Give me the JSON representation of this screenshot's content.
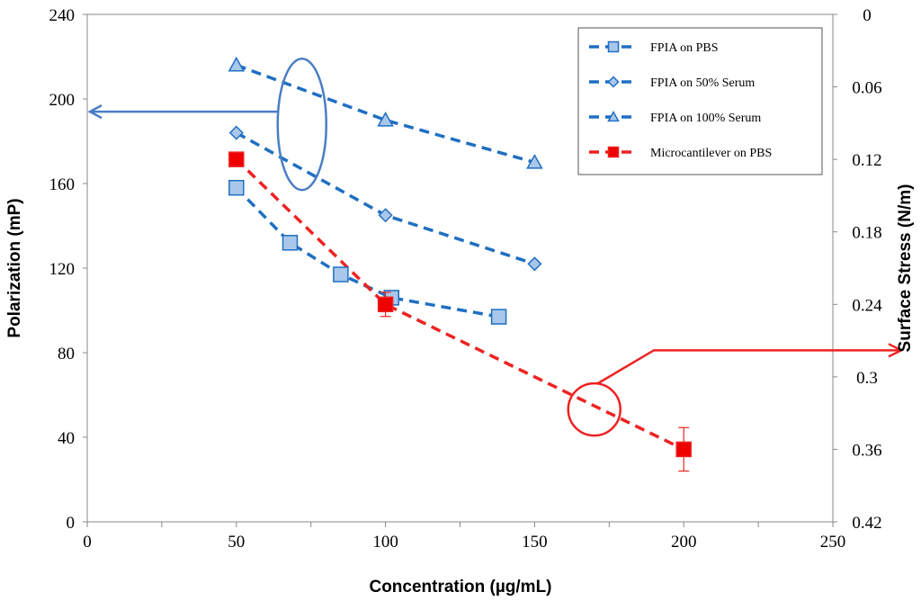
{
  "chart_data": {
    "type": "scatter",
    "title": "",
    "xlabel": "Concentration (µg/mL)",
    "ylabel": "Polarization (mP)",
    "y2label": "Surface Stress (N/m)",
    "xlim": [
      0,
      250
    ],
    "ylim": [
      0,
      240
    ],
    "y2lim": [
      0,
      0.42
    ],
    "y2_inverted": true,
    "x_ticks": [
      "0",
      "50",
      "100",
      "150",
      "200",
      "250"
    ],
    "y_ticks": [
      "0",
      "40",
      "80",
      "120",
      "160",
      "200",
      "240"
    ],
    "y2_ticks": [
      "0",
      "0.06",
      "0.12",
      "0.18",
      "0.24",
      "0.3",
      "0.36",
      "0.42"
    ],
    "grid": false,
    "legend_position": "top-right",
    "series": [
      {
        "name": "FPIA on PBS",
        "axis": "left",
        "marker": "square",
        "color": "#1f6fc2",
        "fill": "#a9c7ea",
        "x": [
          50,
          68,
          85,
          102,
          138
        ],
        "y": [
          158,
          132,
          117,
          106,
          97
        ]
      },
      {
        "name": "FPIA on 50% Serum",
        "axis": "left",
        "marker": "diamond",
        "color": "#1f6fc2",
        "fill": "#a9c7ea",
        "x": [
          50,
          100,
          150
        ],
        "y": [
          184,
          145,
          122
        ]
      },
      {
        "name": "FPIA on 100% Serum",
        "axis": "left",
        "marker": "triangle",
        "color": "#1f6fc2",
        "fill": "#a9c7ea",
        "x": [
          50,
          100,
          150
        ],
        "y": [
          216,
          190,
          170
        ]
      },
      {
        "name": "Microcantilever on PBS",
        "axis": "right",
        "marker": "square",
        "color": "#ee2222",
        "fill": "#ee0000",
        "x": [
          50,
          100,
          200
        ],
        "y": [
          0.12,
          0.24,
          0.36
        ],
        "error": [
          0,
          0.01,
          0.018
        ]
      }
    ],
    "annotations": {
      "left_ellipse": {
        "points_to": "left-axis",
        "color": "#4a7ec4"
      },
      "right_circle": {
        "points_to": "right-axis",
        "color": "#ee2222"
      }
    }
  }
}
